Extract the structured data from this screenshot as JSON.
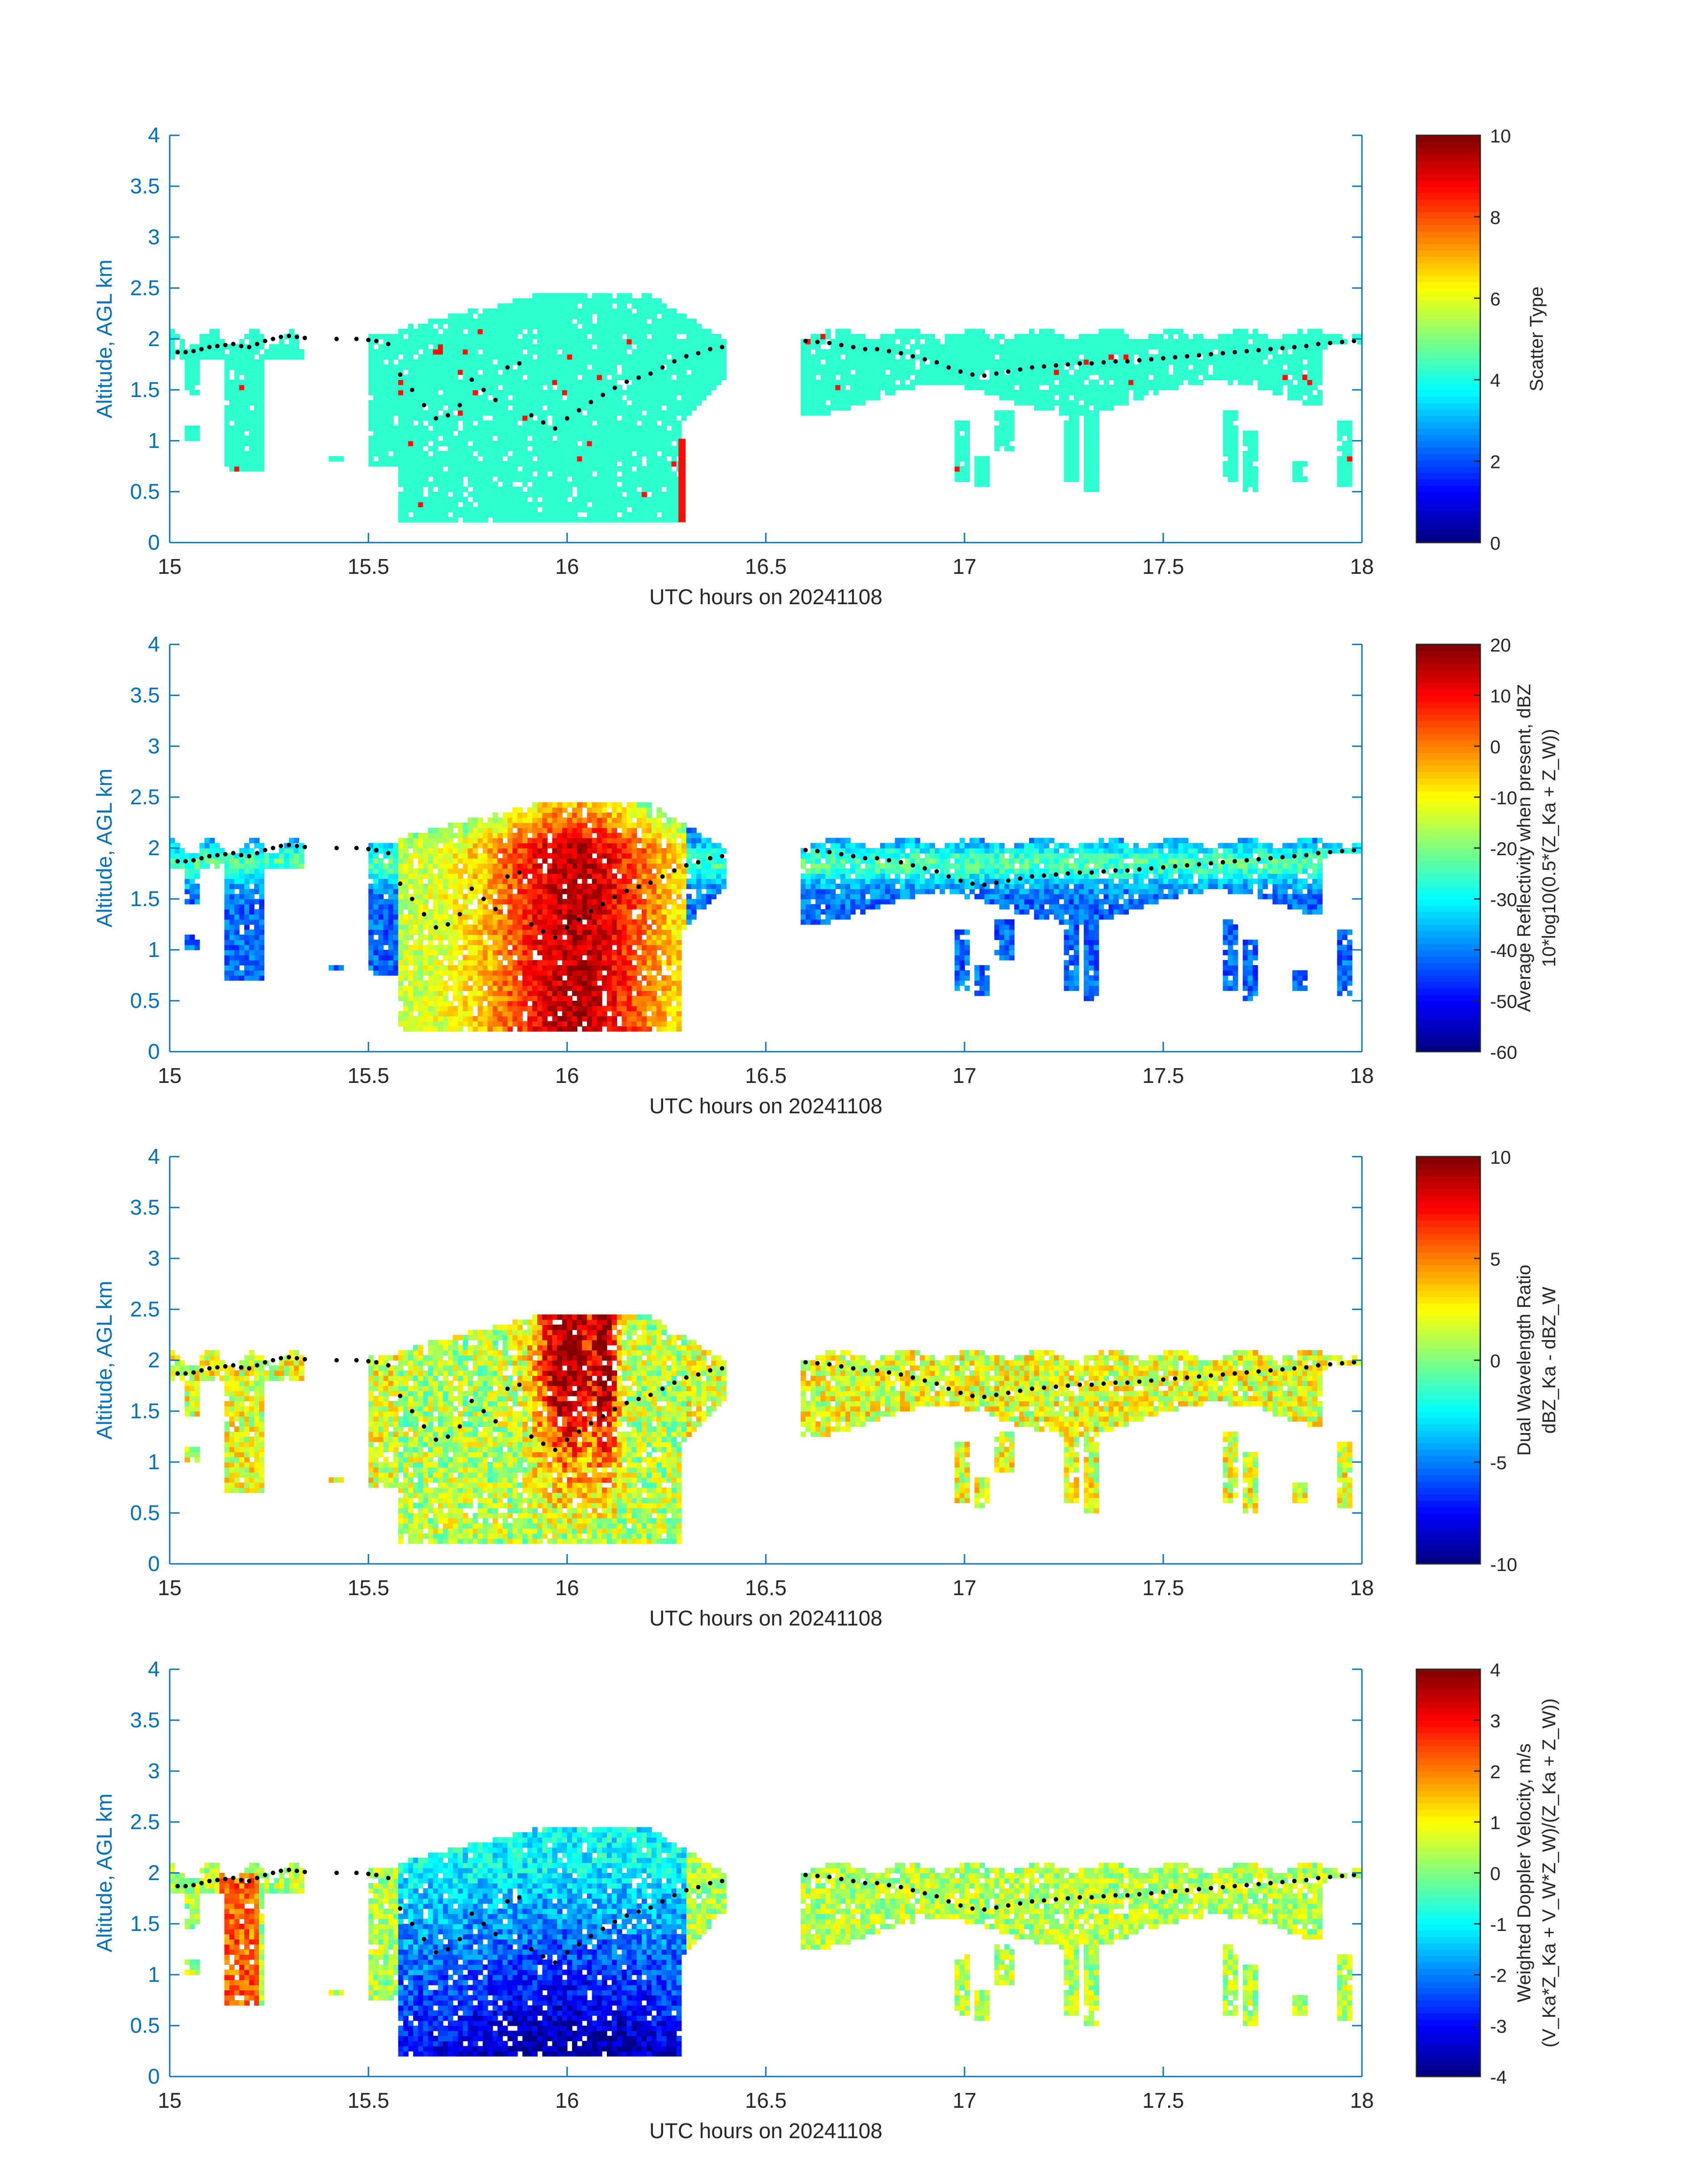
{
  "figure": {
    "background": "#ffffff",
    "axis_color": "#0072bd",
    "cbar_tick_color": "#262626",
    "title": "",
    "note": ""
  },
  "chart_data": [
    {
      "type": "heatmap",
      "title": "",
      "xlabel": "UTC hours on 20241108",
      "ylabel": "Altitude, AGL km",
      "xlim": [
        15,
        18
      ],
      "ylim": [
        0,
        4
      ],
      "xticks": [
        "15",
        "15.5",
        "16",
        "16.5",
        "17",
        "17.5",
        "18"
      ],
      "yticks": [
        "0",
        "0.5",
        "1",
        "1.5",
        "2",
        "2.5",
        "3",
        "3.5",
        "4"
      ],
      "colorbar": {
        "label_lines": [
          "Scatter Type"
        ],
        "range": [
          0,
          10
        ],
        "ticks": [
          "0",
          "2",
          "4",
          "6",
          "8",
          "10"
        ],
        "colormap": "jet"
      },
      "field": "scatter",
      "dominant_value": 4.2,
      "secondary_value": 8.6
    },
    {
      "type": "heatmap",
      "title": "",
      "xlabel": "UTC hours on 20241108",
      "ylabel": "Altitude, AGL km",
      "xlim": [
        15,
        18
      ],
      "ylim": [
        0,
        4
      ],
      "xticks": [
        "15",
        "15.5",
        "16",
        "16.5",
        "17",
        "17.5",
        "18"
      ],
      "yticks": [
        "0",
        "0.5",
        "1",
        "1.5",
        "2",
        "2.5",
        "3",
        "3.5",
        "4"
      ],
      "colorbar": {
        "label_lines": [
          "Average Reflectivity when present, dBZ",
          "10*log10(0.5*(Z_Ka + Z_W))"
        ],
        "range": [
          -60,
          20
        ],
        "ticks": [
          "-60",
          "-50",
          "-40",
          "-30",
          "-20",
          "-10",
          "0",
          "10",
          "20"
        ],
        "colormap": "jet"
      },
      "field": "reflectivity"
    },
    {
      "type": "heatmap",
      "title": "",
      "xlabel": "UTC hours on 20241108",
      "ylabel": "Altitude, AGL km",
      "xlim": [
        15,
        18
      ],
      "ylim": [
        0,
        4
      ],
      "xticks": [
        "15",
        "15.5",
        "16",
        "16.5",
        "17",
        "17.5",
        "18"
      ],
      "yticks": [
        "0",
        "0.5",
        "1",
        "1.5",
        "2",
        "2.5",
        "3",
        "3.5",
        "4"
      ],
      "colorbar": {
        "label_lines": [
          "Dual Wavelength Ratio",
          "dBZ_Ka - dBZ_W"
        ],
        "range": [
          -10,
          10
        ],
        "ticks": [
          "-10",
          "-5",
          "0",
          "5",
          "10"
        ],
        "colormap": "jet"
      },
      "field": "dwr"
    },
    {
      "type": "heatmap",
      "title": "",
      "xlabel": "UTC hours on 20241108",
      "ylabel": "Altitude, AGL km",
      "xlim": [
        15,
        18
      ],
      "ylim": [
        0,
        4
      ],
      "xticks": [
        "15",
        "15.5",
        "16",
        "16.5",
        "17",
        "17.5",
        "18"
      ],
      "yticks": [
        "0",
        "0.5",
        "1",
        "1.5",
        "2",
        "2.5",
        "3",
        "3.5",
        "4"
      ],
      "colorbar": {
        "label_lines": [
          "Weighted Doppler Velocity, m/s",
          "(V_Ka*Z_Ka + V_W*Z_W)/(Z_Ka + Z_W))"
        ],
        "range": [
          -4,
          4
        ],
        "ticks": [
          "-4",
          "-3",
          "-2",
          "-1",
          "0",
          "1",
          "2",
          "3",
          "4"
        ],
        "colormap": "jet"
      },
      "field": "velocity"
    }
  ],
  "cloud_top_dots": {
    "x_hours": [
      15.02,
      15.04,
      15.06,
      15.08,
      15.1,
      15.12,
      15.14,
      15.16,
      15.18,
      15.2,
      15.22,
      15.24,
      15.26,
      15.28,
      15.3,
      15.32,
      15.34,
      15.42,
      15.47,
      15.5,
      15.52,
      15.55,
      15.58,
      15.61,
      15.64,
      15.67,
      15.7,
      15.73,
      15.76,
      15.79,
      15.82,
      15.85,
      15.88,
      15.91,
      15.94,
      15.97,
      16.0,
      16.03,
      16.06,
      16.09,
      16.12,
      16.15,
      16.18,
      16.21,
      16.24,
      16.27,
      16.3,
      16.33,
      16.36,
      16.39,
      16.6,
      16.63,
      16.66,
      16.69,
      16.72,
      16.75,
      16.78,
      16.81,
      16.84,
      16.87,
      16.9,
      16.93,
      16.96,
      16.99,
      17.02,
      17.05,
      17.08,
      17.11,
      17.14,
      17.17,
      17.2,
      17.23,
      17.26,
      17.29,
      17.32,
      17.35,
      17.38,
      17.41,
      17.44,
      17.47,
      17.5,
      17.53,
      17.56,
      17.59,
      17.62,
      17.65,
      17.68,
      17.71,
      17.74,
      17.77,
      17.8,
      17.83,
      17.86,
      17.89,
      17.92,
      17.95,
      17.98
    ],
    "y_km": [
      1.87,
      1.87,
      1.88,
      1.9,
      1.92,
      1.93,
      1.94,
      1.95,
      1.93,
      1.92,
      1.95,
      1.98,
      2.0,
      2.02,
      2.03,
      2.02,
      2.01,
      2.0,
      2.0,
      1.99,
      1.98,
      1.95,
      1.65,
      1.5,
      1.35,
      1.22,
      1.25,
      1.35,
      1.6,
      1.5,
      1.4,
      1.72,
      1.76,
      1.25,
      1.18,
      1.12,
      1.22,
      1.3,
      1.38,
      1.45,
      1.52,
      1.58,
      1.62,
      1.66,
      1.72,
      1.78,
      1.83,
      1.86,
      1.9,
      1.92,
      1.98,
      1.97,
      1.96,
      1.94,
      1.92,
      1.9,
      1.9,
      1.88,
      1.86,
      1.83,
      1.8,
      1.77,
      1.72,
      1.68,
      1.65,
      1.64,
      1.66,
      1.68,
      1.7,
      1.72,
      1.73,
      1.74,
      1.75,
      1.76,
      1.76,
      1.77,
      1.78,
      1.78,
      1.79,
      1.8,
      1.81,
      1.82,
      1.83,
      1.84,
      1.85,
      1.86,
      1.87,
      1.88,
      1.89,
      1.9,
      1.91,
      1.92,
      1.93,
      1.95,
      1.96,
      1.97,
      1.98
    ]
  }
}
